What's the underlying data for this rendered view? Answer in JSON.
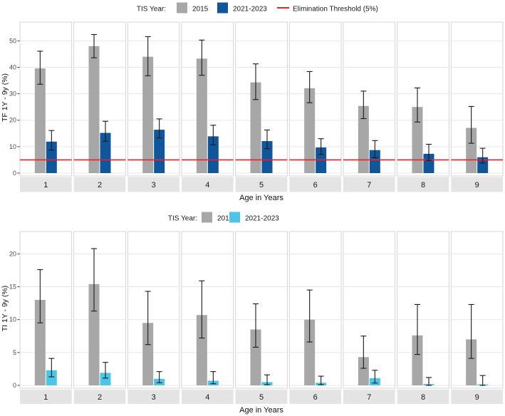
{
  "figure": {
    "xlabel": "Age in Years",
    "legend_title": "TIS Year:"
  },
  "chart_data": [
    {
      "id": "tf-by-age",
      "type": "bar",
      "title": "",
      "legend_title": "TIS Year:",
      "legend_position": "top-center",
      "xlabel": "Age in Years",
      "ylabel": "TF 1Y - 9y (%)",
      "yticks": [
        0,
        10,
        20,
        30,
        40,
        50
      ],
      "ylim": [
        0,
        57.1
      ],
      "grid": true,
      "categories": [
        "1",
        "2",
        "3",
        "4",
        "5",
        "6",
        "7",
        "8",
        "9"
      ],
      "threshold": {
        "label": "Elimination Threshold (5%)",
        "value": 5,
        "color": "#ea2127"
      },
      "series": [
        {
          "name": "2015",
          "color": "#a7a7a7",
          "values": [
            39.6,
            48.0,
            44.0,
            43.3,
            34.3,
            32.1,
            25.4,
            25.0,
            17.1
          ],
          "err_low": [
            33.6,
            43.6,
            36.8,
            37.0,
            27.8,
            26.6,
            20.6,
            19.3,
            11.3
          ],
          "err_high": [
            46.1,
            52.4,
            51.6,
            50.3,
            41.3,
            38.4,
            31.0,
            32.2,
            25.2
          ]
        },
        {
          "name": "2021-2023",
          "color": "#10569b",
          "values": [
            11.9,
            15.2,
            16.4,
            13.9,
            12.1,
            9.7,
            8.7,
            7.3,
            6.0
          ],
          "err_low": [
            8.7,
            12.0,
            13.3,
            10.7,
            9.2,
            7.1,
            5.8,
            4.8,
            3.8
          ],
          "err_high": [
            16.1,
            19.6,
            20.5,
            18.1,
            16.3,
            13.0,
            12.3,
            10.9,
            9.4
          ]
        }
      ]
    },
    {
      "id": "ti-by-age",
      "type": "bar",
      "title": "",
      "legend_title": "TIS Year:",
      "legend_position": "top-center",
      "xlabel": "Age in Years",
      "ylabel": "TI 1Y - 9y (%)",
      "yticks": [
        0,
        5,
        10,
        15,
        20
      ],
      "ylim": [
        0,
        23.4
      ],
      "grid": true,
      "categories": [
        "1",
        "2",
        "3",
        "4",
        "5",
        "6",
        "7",
        "8",
        "9"
      ],
      "threshold": null,
      "series": [
        {
          "name": "2015",
          "color": "#a7a7a7",
          "values": [
            13.0,
            15.4,
            9.5,
            10.7,
            8.5,
            10.0,
            4.3,
            7.6,
            7.0
          ],
          "err_low": [
            9.5,
            11.3,
            6.2,
            7.2,
            5.8,
            6.6,
            2.6,
            4.7,
            4.1
          ],
          "err_high": [
            17.6,
            20.8,
            14.3,
            15.9,
            12.4,
            14.5,
            7.5,
            12.3,
            12.3
          ]
        },
        {
          "name": "2021-2023",
          "color": "#4cc6e6",
          "values": [
            2.3,
            1.9,
            1.0,
            0.7,
            0.5,
            0.4,
            1.1,
            0.2,
            0.15
          ],
          "err_low": [
            1.3,
            1.1,
            0.4,
            0.25,
            0.1,
            0.1,
            0.35,
            0.0,
            0.0
          ],
          "err_high": [
            4.1,
            3.5,
            2.1,
            2.1,
            1.6,
            1.4,
            2.3,
            1.2,
            1.5
          ]
        }
      ]
    }
  ],
  "style": {
    "panel_border": "#d4d4d4",
    "grid_color": "#e7e7e7",
    "strip_fill": "#e4e4e4",
    "tick_text": "#4a4a4a",
    "error_bar": "#1a1a1a"
  }
}
